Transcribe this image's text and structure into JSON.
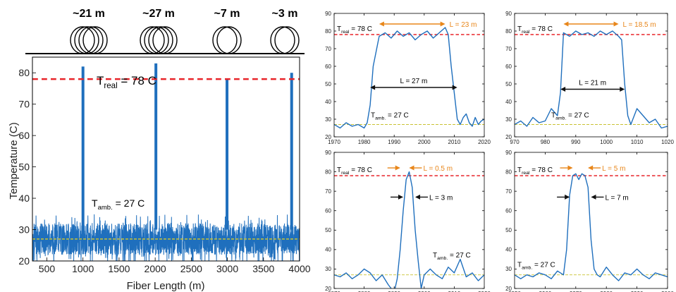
{
  "coils": [
    {
      "label": "~21 m",
      "loops": 4
    },
    {
      "label": "~27 m",
      "loops": 4
    },
    {
      "label": "~7 m",
      "loops": 2
    },
    {
      "label": "~3 m",
      "loops": 2
    }
  ],
  "colors": {
    "trace": "#1f6fbd",
    "real": "#e8252a",
    "amb": "#c9c233",
    "annot_orange": "#e8861a",
    "annot_black": "#111111"
  },
  "chart_data": [
    {
      "type": "line",
      "id": "main",
      "xlabel": "Fiber Length (m)",
      "ylabel": "Temperature (C)",
      "xlim": [
        300,
        4000
      ],
      "ylim": [
        20,
        85
      ],
      "xticks": [
        500,
        1000,
        1500,
        2000,
        2500,
        3000,
        3500,
        4000
      ],
      "yticks": [
        20,
        30,
        40,
        50,
        60,
        70,
        80
      ],
      "real_temp": 78,
      "amb_temp": 27,
      "noise_band": [
        23,
        33
      ],
      "peaks": [
        {
          "x": 1000,
          "y": 82
        },
        {
          "x": 2010,
          "y": 83
        },
        {
          "x": 2995,
          "y": 78
        },
        {
          "x": 3890,
          "y": 80
        }
      ],
      "real_label": {
        "T": "T",
        "sub": "real",
        "rest": " = 78 C"
      },
      "amb_label": {
        "T": "T",
        "sub": "amb.",
        "rest": " = 27 C"
      }
    },
    {
      "type": "line",
      "id": "zoom1",
      "xlim": [
        1970,
        2020
      ],
      "ylim": [
        20,
        90
      ],
      "xticks": [
        1970,
        1980,
        1990,
        2000,
        2010,
        2020
      ],
      "yticks": [
        20,
        30,
        40,
        50,
        60,
        70,
        80,
        90
      ],
      "real_temp": 78,
      "amb_temp": 27,
      "x": [
        1970,
        1972,
        1974,
        1976,
        1978,
        1980,
        1981,
        1982,
        1983,
        1985,
        1987,
        1989,
        1991,
        1993,
        1995,
        1997,
        1999,
        2001,
        2003,
        2005,
        2007,
        2008,
        2009,
        2010,
        2011,
        2012,
        2013,
        2014,
        2015,
        2016,
        2017,
        2018,
        2019,
        2020
      ],
      "y": [
        27,
        25,
        28,
        26,
        27,
        25,
        28,
        38,
        60,
        77,
        79,
        76,
        80,
        77,
        79,
        75,
        78,
        80,
        76,
        79,
        82,
        78,
        60,
        45,
        30,
        27,
        31,
        33,
        28,
        26,
        31,
        27,
        29,
        30
      ],
      "real_label": {
        "T": "T",
        "sub": "real",
        "rest": " = 78 C"
      },
      "amb_label": {
        "T": "T",
        "sub": "amb.",
        "rest": " = 27 C"
      },
      "L_orange": "L = 23 m",
      "L_black": "L = 27 m"
    },
    {
      "type": "line",
      "id": "zoom2",
      "xlim": [
        970,
        1020
      ],
      "ylim": [
        20,
        90
      ],
      "xticks": [
        970,
        980,
        990,
        1000,
        1010,
        1020
      ],
      "yticks": [
        20,
        30,
        40,
        50,
        60,
        70,
        80,
        90
      ],
      "real_temp": 78,
      "amb_temp": 27,
      "x": [
        970,
        972,
        974,
        976,
        978,
        980,
        982,
        984,
        985,
        986,
        988,
        990,
        992,
        994,
        996,
        998,
        1000,
        1002,
        1004,
        1005,
        1006,
        1007,
        1008,
        1010,
        1012,
        1014,
        1016,
        1018,
        1020
      ],
      "y": [
        27,
        29,
        26,
        31,
        28,
        29,
        36,
        32,
        45,
        79,
        77,
        80,
        78,
        79,
        77,
        80,
        78,
        80,
        77,
        75,
        50,
        32,
        27,
        36,
        32,
        28,
        30,
        25,
        26
      ],
      "real_label": {
        "T": "T",
        "sub": "real",
        "rest": " = 78 C"
      },
      "amb_label": {
        "T": "T",
        "sub": "amb.",
        "rest": " = 27 C"
      },
      "L_orange": "L = 18.5 m",
      "L_black": "L = 21 m"
    },
    {
      "type": "line",
      "id": "zoom3",
      "xlim": [
        3870,
        3920
      ],
      "ylim": [
        20,
        90
      ],
      "xticks": [
        3870,
        3880,
        3890,
        3900,
        3910,
        3920
      ],
      "yticks": [
        20,
        30,
        40,
        50,
        60,
        70,
        80,
        90
      ],
      "real_temp": 78,
      "amb_temp": 27,
      "x": [
        3870,
        3872,
        3874,
        3876,
        3878,
        3880,
        3882,
        3884,
        3886,
        3888,
        3890,
        3891,
        3892,
        3893,
        3894,
        3895,
        3896,
        3897,
        3898,
        3899,
        3900,
        3902,
        3904,
        3906,
        3908,
        3910,
        3912,
        3914,
        3916,
        3918,
        3920
      ],
      "y": [
        27,
        26,
        28,
        25,
        27,
        30,
        28,
        24,
        27,
        22,
        18,
        25,
        40,
        60,
        76,
        80,
        72,
        50,
        34,
        20,
        27,
        30,
        27,
        25,
        31,
        28,
        35,
        26,
        28,
        24,
        27
      ],
      "real_label": {
        "T": "T",
        "sub": "real",
        "rest": " = 78 C"
      },
      "amb_label": {
        "T": "T",
        "sub": "amb.",
        "rest": " = 27 C"
      },
      "L_orange": "L = 0.5 m",
      "L_black": "L = 3 m"
    },
    {
      "type": "line",
      "id": "zoom4",
      "xlim": [
        2950,
        3000
      ],
      "ylim": [
        20,
        90
      ],
      "xticks": [
        2950,
        2960,
        2970,
        2980,
        2990,
        3000
      ],
      "yticks": [
        20,
        30,
        40,
        50,
        60,
        70,
        80,
        90
      ],
      "real_temp": 78,
      "amb_temp": 27,
      "x": [
        2950,
        2952,
        2954,
        2956,
        2958,
        2960,
        2962,
        2964,
        2966,
        2967,
        2968,
        2969,
        2970,
        2971,
        2972,
        2973,
        2974,
        2975,
        2976,
        2977,
        2978,
        2980,
        2982,
        2984,
        2986,
        2988,
        2990,
        2992,
        2994,
        2996,
        2998,
        3000
      ],
      "y": [
        27,
        25,
        27,
        26,
        28,
        27,
        25,
        29,
        27,
        40,
        68,
        78,
        79,
        76,
        79,
        78,
        72,
        45,
        30,
        27,
        26,
        31,
        27,
        24,
        28,
        27,
        30,
        27,
        25,
        28,
        27,
        26
      ],
      "real_label": {
        "T": "T",
        "sub": "real",
        "rest": " = 78 C"
      },
      "amb_label": {
        "T": "T",
        "sub": "amb.",
        "rest": " = 27 C"
      },
      "L_orange": "L = 5 m",
      "L_black": "L = 7 m"
    }
  ]
}
